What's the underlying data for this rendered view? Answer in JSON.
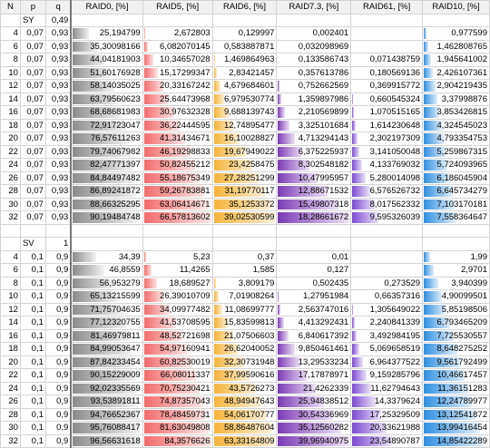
{
  "headers": [
    "N",
    "p",
    "q",
    "RAID0, [%]",
    "RAID5, [%]",
    "RAID6, [%]",
    "RAID7.3, [%]",
    "RAID61, [%]",
    "RAID10, [%]"
  ],
  "colors": {
    "RAID0": "#8c8c8c",
    "RAID5": "#f36b6b",
    "RAID6": "#f5b43a",
    "RAID7.3": "#7a3bb5",
    "RAID61": "#7b4bd0",
    "RAID10": "#2f8fe0"
  },
  "blocks": [
    {
      "label": "SY",
      "q": "0,49",
      "rows": [
        {
          "N": "4",
          "p": "0,07",
          "q": "0,93",
          "v": [
            "25,194799",
            "2,672803",
            "0,129997",
            "0,002401",
            "",
            "0,977599"
          ],
          "f": [
            0.26,
            0.04,
            0.004,
            0.0001,
            0,
            0.07
          ]
        },
        {
          "N": "6",
          "p": "0,07",
          "q": "0,93",
          "v": [
            "35,30098166",
            "6,082070145",
            "0,583887871",
            "0,032098969",
            "",
            "1,462808765"
          ],
          "f": [
            0.37,
            0.09,
            0.02,
            0.002,
            0,
            0.1
          ]
        },
        {
          "N": "8",
          "p": "0,07",
          "q": "0,93",
          "v": [
            "44,04181903",
            "10,34657028",
            "1,469864963",
            "0,133586743",
            "0,071438759",
            "1,945641002"
          ],
          "f": [
            0.47,
            0.16,
            0.04,
            0.007,
            0.003,
            0.13
          ]
        },
        {
          "N": "10",
          "p": "0,07",
          "q": "0,93",
          "v": [
            "51,60176928",
            "15,17299347",
            "2,83421457",
            "0,357613786",
            "0,180569136",
            "2,426107361"
          ],
          "f": [
            0.55,
            0.23,
            0.08,
            0.02,
            0.008,
            0.17
          ]
        },
        {
          "N": "12",
          "p": "0,07",
          "q": "0,93",
          "v": [
            "58,14035025",
            "20,33167242",
            "4,679684601",
            "0,752662569",
            "0,369915772",
            "2,904219435"
          ],
          "f": [
            0.62,
            0.31,
            0.13,
            0.04,
            0.016,
            0.2
          ]
        },
        {
          "N": "14",
          "p": "0,07",
          "q": "0,93",
          "v": [
            "63,79560623",
            "25,64473968",
            "6,979530774",
            "1,359897986",
            "0,660545324",
            "3,37998876"
          ],
          "f": [
            0.68,
            0.39,
            0.19,
            0.07,
            0.03,
            0.23
          ]
        },
        {
          "N": "16",
          "p": "0,07",
          "q": "0,93",
          "v": [
            "68,68681983",
            "30,97632328",
            "9,688139743",
            "2,210569899",
            "1,070515165",
            "3,853426815"
          ],
          "f": [
            0.73,
            0.47,
            0.26,
            0.12,
            0.045,
            0.26
          ]
        },
        {
          "N": "18",
          "p": "0,07",
          "q": "0,93",
          "v": [
            "72,91723047",
            "36,22444595",
            "12,74895477",
            "3,325101684",
            "1,614230648",
            "4,324545023"
          ],
          "f": [
            0.78,
            0.55,
            0.34,
            0.18,
            0.07,
            0.3
          ]
        },
        {
          "N": "20",
          "p": "0,07",
          "q": "0,93",
          "v": [
            "76,57611263",
            "41,31434671",
            "16,10028827",
            "4,713294143",
            "2,302197309",
            "4,793354753"
          ],
          "f": [
            0.82,
            0.63,
            0.43,
            0.26,
            0.1,
            0.33
          ]
        },
        {
          "N": "22",
          "p": "0,07",
          "q": "0,93",
          "v": [
            "79,74067982",
            "46,19298833",
            "19,67949022",
            "6,375225937",
            "3,141050048",
            "5,259867315"
          ],
          "f": [
            0.85,
            0.7,
            0.53,
            0.35,
            0.13,
            0.36
          ]
        },
        {
          "N": "24",
          "p": "0,07",
          "q": "0,93",
          "v": [
            "82,47771397",
            "50,82455212",
            "23,4258475",
            "8,302548182",
            "4,133769032",
            "5,724093965"
          ],
          "f": [
            0.88,
            0.77,
            0.63,
            0.45,
            0.17,
            0.39
          ]
        },
        {
          "N": "26",
          "p": "0,07",
          "q": "0,93",
          "v": [
            "84,84497482",
            "55,18675349",
            "27,28251299",
            "10,47995957",
            "5,280014098",
            "6,186045904"
          ],
          "f": [
            0.91,
            0.84,
            0.73,
            0.57,
            0.22,
            0.42
          ]
        },
        {
          "N": "28",
          "p": "0,07",
          "q": "0,93",
          "v": [
            "86,89241872",
            "59,26783881",
            "31,19770117",
            "12,88671532",
            "6,576526732",
            "6,645734279"
          ],
          "f": [
            0.93,
            0.9,
            0.84,
            0.7,
            0.28,
            0.46
          ]
        },
        {
          "N": "30",
          "p": "0,07",
          "q": "0,93",
          "v": [
            "88,66325295",
            "63,06414671",
            "35,1253372",
            "15,49807318",
            "8,017562332",
            "7,103170181"
          ],
          "f": [
            0.95,
            0.96,
            0.94,
            0.85,
            0.34,
            0.49
          ]
        },
        {
          "N": "32",
          "p": "0,07",
          "q": "0,93",
          "v": [
            "90,19484748",
            "66,57813602",
            "39,02530599",
            "18,28661672",
            "9,595326039",
            "7,558364647"
          ],
          "f": [
            0.97,
            1.0,
            1.0,
            1.0,
            0.4,
            0.52
          ]
        }
      ]
    },
    {
      "label": "SV",
      "q": "1",
      "rows": [
        {
          "N": "4",
          "p": "0,1",
          "q": "0,9",
          "v": [
            "34,39",
            "5,23",
            "0,37",
            "0,01",
            "",
            "1,99"
          ],
          "f": [
            0.36,
            0.06,
            0.005,
            0.0002,
            0,
            0.12
          ]
        },
        {
          "N": "6",
          "p": "0,1",
          "q": "0,9",
          "v": [
            "46,8559",
            "11,4265",
            "1,585",
            "0,127",
            "",
            "2,9701"
          ],
          "f": [
            0.48,
            0.13,
            0.025,
            0.003,
            0,
            0.18
          ]
        },
        {
          "N": "8",
          "p": "0,1",
          "q": "0,9",
          "v": [
            "56,953279",
            "18,689527",
            "3,809179",
            "0,502435",
            "0,273529",
            "3,940399"
          ],
          "f": [
            0.59,
            0.22,
            0.06,
            0.013,
            0.007,
            0.24
          ]
        },
        {
          "N": "10",
          "p": "0,1",
          "q": "0,9",
          "v": [
            "65,13215599",
            "26,39010709",
            "7,01908264",
            "1,27951984",
            "0,66357316",
            "4,90099501"
          ],
          "f": [
            0.67,
            0.31,
            0.11,
            0.03,
            0.017,
            0.3
          ]
        },
        {
          "N": "12",
          "p": "0,1",
          "q": "0,9",
          "v": [
            "71,75704635",
            "34,09977482",
            "11,08699777",
            "2,563747016",
            "1,305649022",
            "5,85198506"
          ],
          "f": [
            0.74,
            0.4,
            0.17,
            0.06,
            0.03,
            0.36
          ]
        },
        {
          "N": "14",
          "p": "0,1",
          "q": "0,9",
          "v": [
            "77,12320755",
            "41,53708595",
            "15,83599813",
            "4,413292431",
            "2,240841339",
            "6,793465209"
          ],
          "f": [
            0.8,
            0.49,
            0.25,
            0.11,
            0.056,
            0.42
          ]
        },
        {
          "N": "16",
          "p": "0,1",
          "q": "0,9",
          "v": [
            "81,46979811",
            "48,52721698",
            "21,07506603",
            "6,840617392",
            "3,492984195",
            "7,725530557"
          ],
          "f": [
            0.84,
            0.58,
            0.33,
            0.17,
            0.087,
            0.48
          ]
        },
        {
          "N": "18",
          "p": "0,1",
          "q": "0,9",
          "v": [
            "84,99053647",
            "54,97160941",
            "26,62040052",
            "9,850461461",
            "5,069658519",
            "8,648275252"
          ],
          "f": [
            0.88,
            0.65,
            0.42,
            0.25,
            0.126,
            0.53
          ]
        },
        {
          "N": "20",
          "p": "0,1",
          "q": "0,9",
          "v": [
            "87,84233454",
            "60,82530019",
            "32,30731948",
            "13,29533234",
            "6,964377522",
            "9,561792499"
          ],
          "f": [
            0.91,
            0.72,
            0.51,
            0.33,
            0.173,
            0.59
          ]
        },
        {
          "N": "22",
          "p": "0,1",
          "q": "0,9",
          "v": [
            "90,15229009",
            "66,08011337",
            "37,99590616",
            "17,17878971",
            "9,159285796",
            "10,46617457"
          ],
          "f": [
            0.93,
            0.78,
            0.6,
            0.43,
            0.228,
            0.65
          ]
        },
        {
          "N": "24",
          "p": "0,1",
          "q": "0,9",
          "v": [
            "92,02335569",
            "70,75230421",
            "43,5726273",
            "21,4262339",
            "11,62794643",
            "11,36151283"
          ],
          "f": [
            0.95,
            0.84,
            0.69,
            0.54,
            0.29,
            0.7
          ]
        },
        {
          "N": "26",
          "p": "0,1",
          "q": "0,9",
          "v": [
            "93,53891811",
            "74,87357043",
            "48,94947643",
            "25,94838512",
            "14,3379624",
            "12,24789977"
          ],
          "f": [
            0.97,
            0.89,
            0.77,
            0.65,
            0.357,
            0.76
          ]
        },
        {
          "N": "28",
          "p": "0,1",
          "q": "0,9",
          "v": [
            "94,76652367",
            "78,48459731",
            "54,06170777",
            "30,54336969",
            "17,25329509",
            "13,12541872"
          ],
          "f": [
            0.98,
            0.93,
            0.85,
            0.77,
            0.43,
            0.81
          ]
        },
        {
          "N": "30",
          "p": "0,1",
          "q": "0,9",
          "v": [
            "95,76088417",
            "81,63049808",
            "58,86487604",
            "35,12560282",
            "20,33621988",
            "13,99416454"
          ],
          "f": [
            0.99,
            0.97,
            0.93,
            0.88,
            0.506,
            0.87
          ]
        },
        {
          "N": "32",
          "p": "0,1",
          "q": "0,9",
          "v": [
            "96,56631618",
            "84,3576626",
            "63,33164809",
            "39,96940975",
            "23,54890787",
            "14,85422289"
          ],
          "f": [
            1.0,
            1.0,
            1.0,
            1.0,
            0.586,
            0.92
          ]
        }
      ]
    }
  ]
}
